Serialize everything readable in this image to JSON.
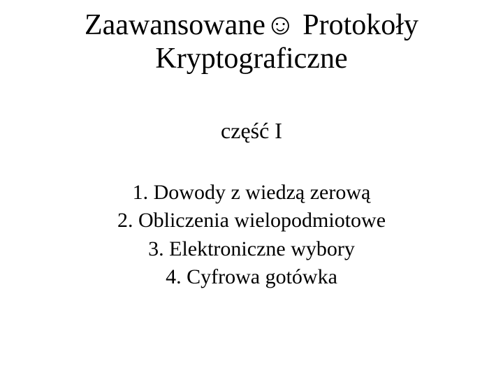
{
  "colors": {
    "background": "#ffffff",
    "text": "#000000"
  },
  "typography": {
    "family": "Times New Roman",
    "title_fontsize": 42,
    "subtitle_fontsize": 32,
    "list_fontsize": 30
  },
  "title": {
    "line1_part1": "Zaawansowane",
    "line1_smiley": "☺",
    "line1_part2": " Protokoły",
    "line2": "Kryptograficzne"
  },
  "subtitle": "część I",
  "items": [
    {
      "num": "1.",
      "text": "Dowody z wiedzą zerową"
    },
    {
      "num": "2.",
      "text": "Obliczenia wielopodmiotowe"
    },
    {
      "num": "3.",
      "text": "Elektroniczne wybory"
    },
    {
      "num": "4.",
      "text": "Cyfrowa gotówka"
    }
  ]
}
